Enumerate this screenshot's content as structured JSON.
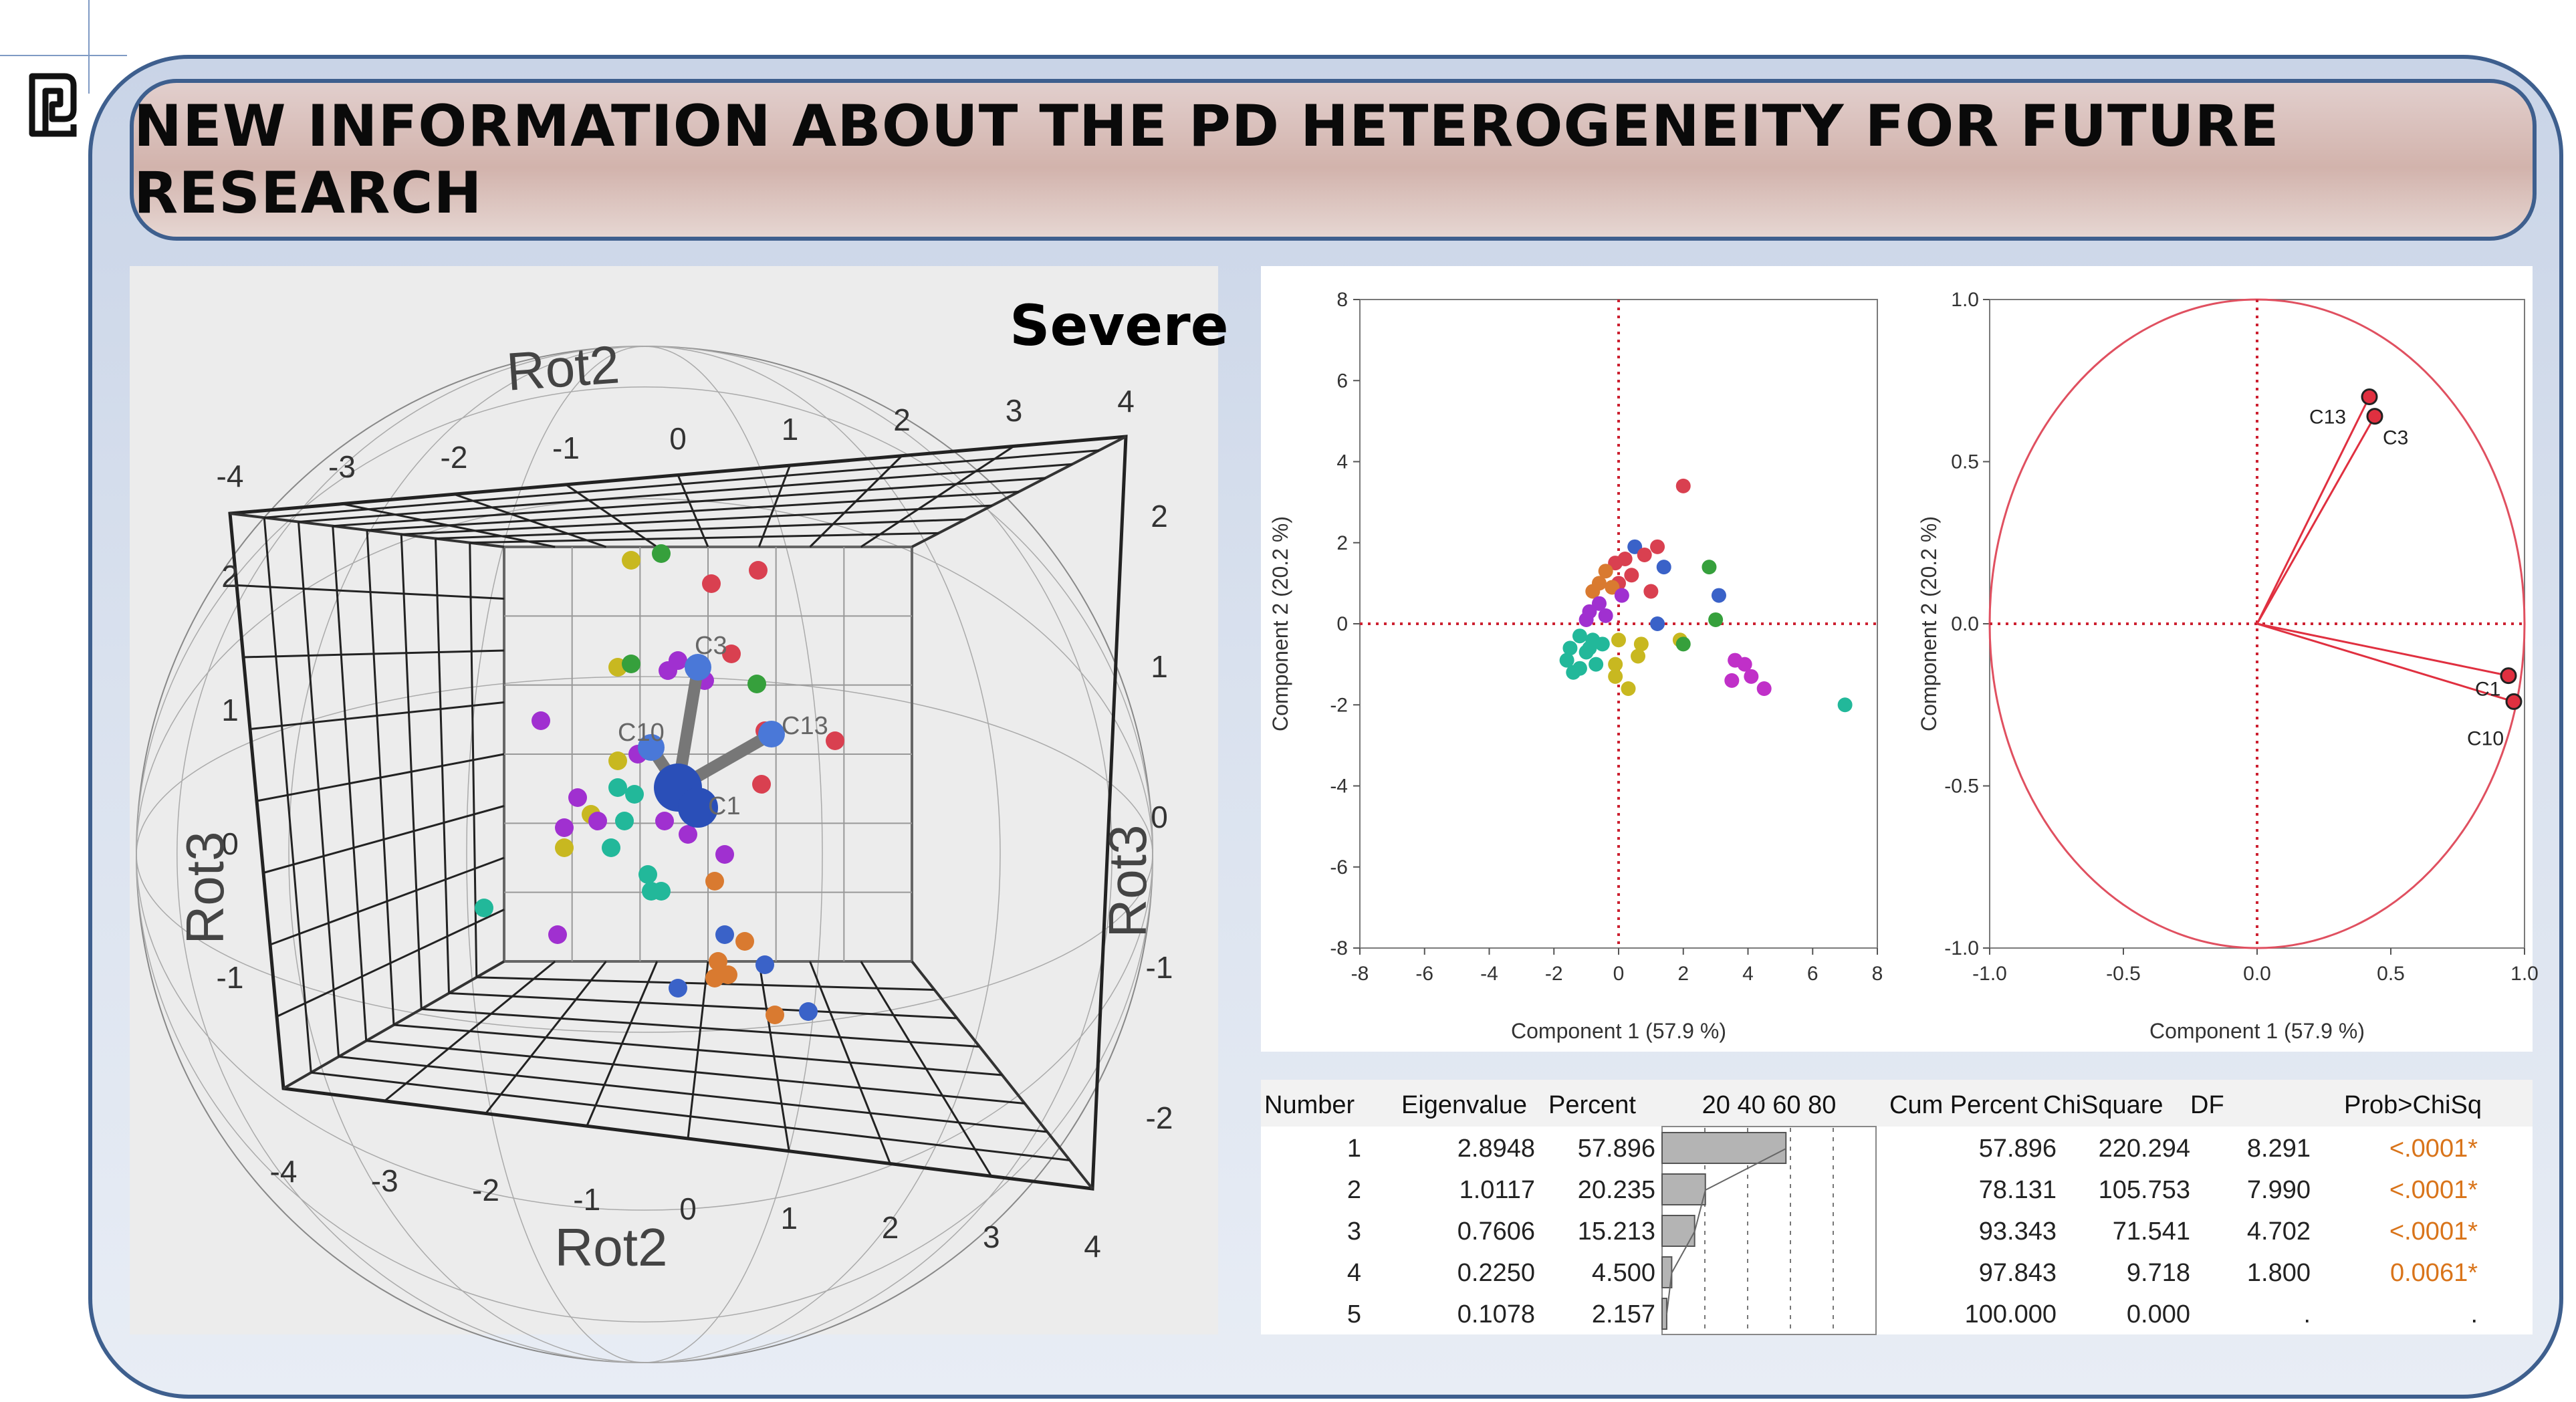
{
  "title": "NEW INFORMATION ABOUT THE PD HETEROGENEITY FOR FUTURE RESEARCH",
  "logo_icon": "publisher-logo-icon",
  "colors": {
    "frame_border": "#3e5f8e",
    "accent_red": "#e0303c",
    "prob_orange": "#d9741a",
    "bar_gray": "#b4b4b4"
  },
  "panel_3d": {
    "label": "Severe",
    "axis_rot2": "Rot2",
    "axis_rot3": "Rot3",
    "vector_labels": [
      "C3",
      "C13",
      "C10",
      "C1"
    ],
    "ticks_top_rot2": [
      "-4",
      "-3",
      "-2",
      "-1",
      "0",
      "1",
      "2",
      "3",
      "4"
    ],
    "ticks_bottom_rot2": [
      "-4",
      "-3",
      "-2",
      "-1",
      "0",
      "1",
      "2",
      "3",
      "4"
    ],
    "ticks_left": [
      "2",
      "1",
      "0",
      "-1"
    ],
    "ticks_right": [
      "2",
      "1",
      "0",
      "-1",
      "-2"
    ]
  },
  "chart_data": [
    {
      "type": "scatter",
      "title": "",
      "xlabel": "Component 1  (57.9 %)",
      "ylabel": "Component 2  (20.2 %)",
      "xlim": [
        -8,
        8
      ],
      "ylim": [
        -8,
        8
      ],
      "xticks": [
        "-8",
        "-6",
        "-4",
        "-2",
        "0",
        "2",
        "4",
        "6",
        "8"
      ],
      "yticks": [
        "8",
        "6",
        "4",
        "2",
        "0",
        "-2",
        "-4",
        "-6",
        "-8"
      ],
      "reference_lines": {
        "x": 0,
        "y": 0,
        "style": "dotted",
        "color": "#cc2030"
      },
      "points": [
        {
          "x": 2.0,
          "y": 3.4,
          "color": "#d94050"
        },
        {
          "x": 1.2,
          "y": 1.9,
          "color": "#d94050"
        },
        {
          "x": 0.5,
          "y": 1.9,
          "color": "#3a62c8"
        },
        {
          "x": 0.8,
          "y": 1.7,
          "color": "#d94050"
        },
        {
          "x": 0.2,
          "y": 1.6,
          "color": "#d94050"
        },
        {
          "x": 1.4,
          "y": 1.4,
          "color": "#3a62c8"
        },
        {
          "x": -0.1,
          "y": 1.5,
          "color": "#d94050"
        },
        {
          "x": -0.4,
          "y": 1.3,
          "color": "#d97a30"
        },
        {
          "x": 0.4,
          "y": 1.2,
          "color": "#d94050"
        },
        {
          "x": 0.0,
          "y": 1.0,
          "color": "#d94050"
        },
        {
          "x": -0.6,
          "y": 1.0,
          "color": "#d97a30"
        },
        {
          "x": -0.2,
          "y": 0.9,
          "color": "#d97a30"
        },
        {
          "x": -0.8,
          "y": 0.8,
          "color": "#d97a30"
        },
        {
          "x": 1.0,
          "y": 0.8,
          "color": "#d94050"
        },
        {
          "x": 0.1,
          "y": 0.7,
          "color": "#a030d0"
        },
        {
          "x": -0.6,
          "y": 0.5,
          "color": "#a030d0"
        },
        {
          "x": -0.9,
          "y": 0.3,
          "color": "#a030d0"
        },
        {
          "x": -0.4,
          "y": 0.2,
          "color": "#a030d0"
        },
        {
          "x": -1.0,
          "y": 0.1,
          "color": "#a030d0"
        },
        {
          "x": 2.8,
          "y": 1.4,
          "color": "#36a03c"
        },
        {
          "x": 3.1,
          "y": 0.7,
          "color": "#3a62c8"
        },
        {
          "x": 3.0,
          "y": 0.1,
          "color": "#36a03c"
        },
        {
          "x": 1.2,
          "y": 0.0,
          "color": "#3a62c8"
        },
        {
          "x": 1.9,
          "y": -0.4,
          "color": "#c8b820"
        },
        {
          "x": 2.0,
          "y": -0.5,
          "color": "#36a03c"
        },
        {
          "x": 0.7,
          "y": -0.5,
          "color": "#c8b820"
        },
        {
          "x": 0.6,
          "y": -0.8,
          "color": "#c8b820"
        },
        {
          "x": 0.0,
          "y": -0.4,
          "color": "#c8b820"
        },
        {
          "x": -0.1,
          "y": -1.0,
          "color": "#c8b820"
        },
        {
          "x": -0.1,
          "y": -1.3,
          "color": "#c8b820"
        },
        {
          "x": 0.3,
          "y": -1.6,
          "color": "#c8b820"
        },
        {
          "x": -1.2,
          "y": -0.3,
          "color": "#22b89a"
        },
        {
          "x": -0.8,
          "y": -0.4,
          "color": "#22b89a"
        },
        {
          "x": -1.5,
          "y": -0.6,
          "color": "#22b89a"
        },
        {
          "x": -1.0,
          "y": -0.7,
          "color": "#22b89a"
        },
        {
          "x": -1.6,
          "y": -0.9,
          "color": "#22b89a"
        },
        {
          "x": -1.2,
          "y": -1.1,
          "color": "#22b89a"
        },
        {
          "x": -0.9,
          "y": -0.6,
          "color": "#22b89a"
        },
        {
          "x": -0.7,
          "y": -1.0,
          "color": "#22b89a"
        },
        {
          "x": -1.4,
          "y": -1.2,
          "color": "#22b89a"
        },
        {
          "x": -0.5,
          "y": -0.5,
          "color": "#22b89a"
        },
        {
          "x": 3.6,
          "y": -0.9,
          "color": "#c030c8"
        },
        {
          "x": 3.9,
          "y": -1.0,
          "color": "#c030c8"
        },
        {
          "x": 3.5,
          "y": -1.4,
          "color": "#c030c8"
        },
        {
          "x": 4.1,
          "y": -1.3,
          "color": "#c030c8"
        },
        {
          "x": 4.5,
          "y": -1.6,
          "color": "#c030c8"
        },
        {
          "x": 7.0,
          "y": -2.0,
          "color": "#22b89a"
        }
      ]
    },
    {
      "type": "scatter",
      "title": "",
      "xlabel": "Component 1  (57.9 %)",
      "ylabel": "Component 2  (20.2 %)",
      "xlim": [
        -1.0,
        1.0
      ],
      "ylim": [
        -1.0,
        1.0
      ],
      "xticks": [
        "-1.0",
        "-0.5",
        "0.0",
        "0.5",
        "1.0"
      ],
      "yticks": [
        "1.0",
        "0.5",
        "0.0",
        "-0.5",
        "-1.0"
      ],
      "unit_circle": true,
      "loadings": [
        {
          "label": "C13",
          "x": 0.42,
          "y": 0.7
        },
        {
          "label": "C3",
          "x": 0.44,
          "y": 0.64
        },
        {
          "label": "C1",
          "x": 0.94,
          "y": -0.16
        },
        {
          "label": "C10",
          "x": 0.96,
          "y": -0.24
        }
      ],
      "loading_labels_shown": [
        "C13",
        "C3",
        "C1",
        "C10"
      ]
    },
    {
      "type": "table",
      "columns": [
        "Number",
        "Eigenvalue",
        "Percent",
        "20 40 60 80",
        "Cum Percent",
        "ChiSquare",
        "DF",
        "Prob>ChiSq"
      ],
      "rows": [
        {
          "number": "1",
          "eigenvalue": "2.8948",
          "percent": "57.896",
          "percent_value": 57.896,
          "cum_percent": "57.896",
          "chisquare": "220.294",
          "df": "8.291",
          "prob": "<.0001*"
        },
        {
          "number": "2",
          "eigenvalue": "1.0117",
          "percent": "20.235",
          "percent_value": 20.235,
          "cum_percent": "78.131",
          "chisquare": "105.753",
          "df": "7.990",
          "prob": "<.0001*"
        },
        {
          "number": "3",
          "eigenvalue": "0.7606",
          "percent": "15.213",
          "percent_value": 15.213,
          "cum_percent": "93.343",
          "chisquare": "71.541",
          "df": "4.702",
          "prob": "<.0001*"
        },
        {
          "number": "4",
          "eigenvalue": "0.2250",
          "percent": "4.500",
          "percent_value": 4.5,
          "cum_percent": "97.843",
          "chisquare": "9.718",
          "df": "1.800",
          "prob": "0.0061*"
        },
        {
          "number": "5",
          "eigenvalue": "0.1078",
          "percent": "2.157",
          "percent_value": 2.157,
          "cum_percent": "100.000",
          "chisquare": "0.000",
          "df": ".",
          "prob": "."
        }
      ]
    }
  ]
}
